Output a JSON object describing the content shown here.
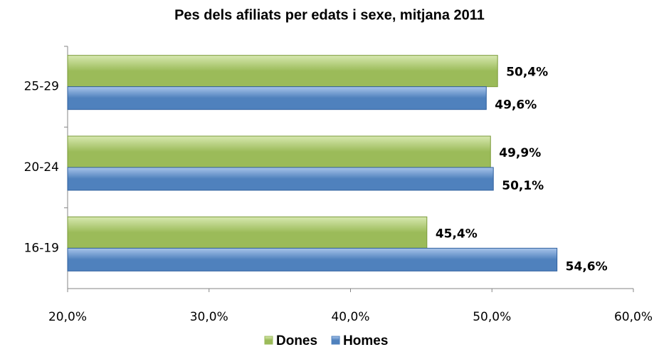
{
  "chart_data": {
    "type": "hbar",
    "title": "Pes dels afiliats per edats i sexe, mitjana 2011",
    "categories": [
      "25-29",
      "20-24",
      "16-19"
    ],
    "series": [
      {
        "name": "Dones",
        "color": "#9bbb59",
        "values": [
          50.4,
          49.9,
          45.4
        ],
        "value_labels": [
          "50,4%",
          "49,9%",
          "45,4%"
        ]
      },
      {
        "name": "Homes",
        "color": "#4f81bd",
        "values": [
          49.6,
          50.1,
          54.6
        ],
        "value_labels": [
          "49,6%",
          "50,1%",
          "54,6%"
        ]
      }
    ],
    "xlim": [
      20,
      60
    ],
    "xticks": [
      {
        "value": 20,
        "label": "20,0%"
      },
      {
        "value": 30,
        "label": "30,0%"
      },
      {
        "value": 40,
        "label": "40,0%"
      },
      {
        "value": 50,
        "label": "50,0%"
      },
      {
        "value": 60,
        "label": "60,0%"
      }
    ],
    "legend": "bottom"
  }
}
